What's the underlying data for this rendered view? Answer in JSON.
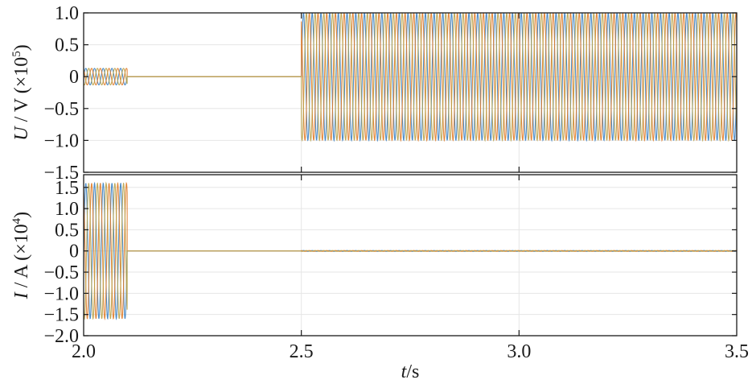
{
  "chart_data": [
    {
      "type": "line",
      "panel": "top",
      "ylabel_var": "U",
      "ylabel_unit": " / V  (×10",
      "ylabel_exp": "5",
      "ylabel_close": ")",
      "xlim": [
        2.0,
        3.5
      ],
      "ylim": [
        -1.5,
        1.0
      ],
      "yticks": [
        1.0,
        0.5,
        0,
        -0.5,
        -1.0,
        -1.5
      ],
      "ytick_labels": [
        "1.0",
        "0.5",
        "0",
        "−0.5",
        "−1.0",
        "−1.5"
      ],
      "grid": true,
      "series": [
        {
          "phase": 0,
          "color": "#3a7fc1"
        },
        {
          "phase": 1,
          "color": "#e07b28"
        },
        {
          "phase": 2,
          "color": "#b8a24a"
        }
      ],
      "segments": [
        {
          "x_start": 2.0,
          "x_end": 2.1,
          "amplitude": 0.13,
          "frequency_hz": 50
        },
        {
          "x_start": 2.1,
          "x_end": 2.5,
          "amplitude": 0.0,
          "frequency_hz": 50
        },
        {
          "x_start": 2.5,
          "x_end": 3.5,
          "amplitude": 1.0,
          "frequency_hz": 50
        }
      ]
    },
    {
      "type": "line",
      "panel": "bottom",
      "ylabel_var": "I",
      "ylabel_unit": " / A  (×10",
      "ylabel_exp": "4",
      "ylabel_close": ")",
      "xlabel_var": "t",
      "xlabel_unit": "/s",
      "xlim": [
        2.0,
        3.5
      ],
      "ylim": [
        -2.0,
        1.8
      ],
      "yticks": [
        1.5,
        1.0,
        0.5,
        0,
        -0.5,
        -1.0,
        -1.5,
        -2.0
      ],
      "ytick_labels": [
        "1.5",
        "1.0",
        "0.5",
        "0",
        "−0.5",
        "−1.0",
        "−1.5",
        "−2.0"
      ],
      "xticks": [
        2.0,
        2.5,
        3.0,
        3.5
      ],
      "xtick_labels": [
        "2.0",
        "2.5",
        "3.0",
        "3.5"
      ],
      "grid": true,
      "series": [
        {
          "phase": 0,
          "color": "#3a7fc1"
        },
        {
          "phase": 1,
          "color": "#e07b28"
        },
        {
          "phase": 2,
          "color": "#b8a24a"
        }
      ],
      "segments": [
        {
          "x_start": 2.0,
          "x_end": 2.1,
          "amplitude": 1.6,
          "frequency_hz": 50
        },
        {
          "x_start": 2.1,
          "x_end": 2.5,
          "amplitude": 0.0,
          "frequency_hz": 50
        },
        {
          "x_start": 2.5,
          "x_end": 3.5,
          "amplitude": 0.01,
          "frequency_hz": 50
        }
      ]
    }
  ]
}
